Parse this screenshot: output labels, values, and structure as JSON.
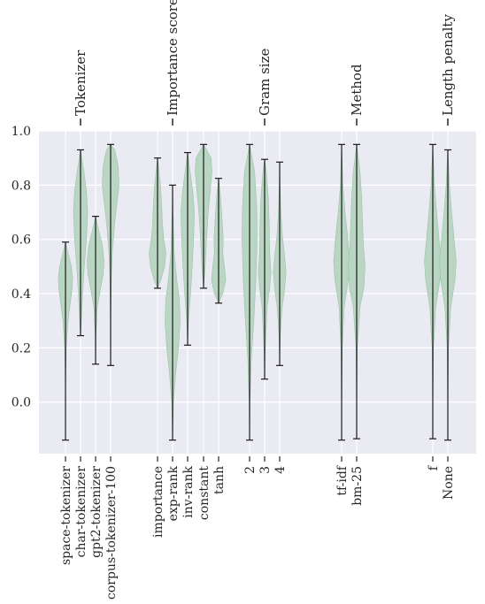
{
  "chart_data": {
    "type": "violin",
    "ylim": [
      -0.19,
      1.0
    ],
    "yticks": [
      0.0,
      0.2,
      0.4,
      0.6,
      0.8,
      1.0
    ],
    "ytick_labels": [
      "0.0",
      "0.2",
      "0.4",
      "0.6",
      "0.8",
      "1.0"
    ],
    "grid": true,
    "colors": {
      "background": "#eaeaf2",
      "grid": "#ffffff",
      "violin_fill": "#b9d6c3",
      "violin_stroke": "#9ec3ab",
      "whisker": "#1a1a1a",
      "text": "#262626"
    },
    "groups": [
      {
        "label": "Tokenizer",
        "items": [
          {
            "label": "space-tokenizer",
            "min": -0.14,
            "max": 0.59,
            "profile": [
              [
                -0.14,
                0.0
              ],
              [
                0.0,
                0.01
              ],
              [
                0.1,
                0.03
              ],
              [
                0.2,
                0.09
              ],
              [
                0.3,
                0.3
              ],
              [
                0.36,
                0.55
              ],
              [
                0.42,
                0.8
              ],
              [
                0.46,
                0.85
              ],
              [
                0.5,
                0.7
              ],
              [
                0.55,
                0.3
              ],
              [
                0.59,
                0.0
              ]
            ]
          },
          {
            "label": "char-tokenizer",
            "min": 0.245,
            "max": 0.93,
            "profile": [
              [
                0.245,
                0.0
              ],
              [
                0.3,
                0.1
              ],
              [
                0.4,
                0.25
              ],
              [
                0.5,
                0.45
              ],
              [
                0.6,
                0.7
              ],
              [
                0.7,
                0.85
              ],
              [
                0.78,
                0.7
              ],
              [
                0.85,
                0.4
              ],
              [
                0.93,
                0.0
              ]
            ]
          },
          {
            "label": "gpt2-tokenizer",
            "min": 0.14,
            "max": 0.685,
            "profile": [
              [
                0.14,
                0.0
              ],
              [
                0.25,
                0.05
              ],
              [
                0.35,
                0.2
              ],
              [
                0.42,
                0.6
              ],
              [
                0.47,
                0.9
              ],
              [
                0.52,
                1.0
              ],
              [
                0.58,
                0.8
              ],
              [
                0.63,
                0.4
              ],
              [
                0.685,
                0.0
              ]
            ]
          },
          {
            "label": "corpus-tokenizer-100",
            "min": 0.135,
            "max": 0.95,
            "profile": [
              [
                0.135,
                0.0
              ],
              [
                0.3,
                0.02
              ],
              [
                0.45,
                0.08
              ],
              [
                0.55,
                0.2
              ],
              [
                0.65,
                0.45
              ],
              [
                0.72,
                0.7
              ],
              [
                0.8,
                1.0
              ],
              [
                0.87,
                0.9
              ],
              [
                0.93,
                0.5
              ],
              [
                0.95,
                0.0
              ]
            ]
          }
        ]
      },
      {
        "label": "Importance score",
        "items": [
          {
            "label": "importance",
            "min": 0.42,
            "max": 0.9,
            "profile": [
              [
                0.42,
                0.0
              ],
              [
                0.45,
                0.4
              ],
              [
                0.5,
                0.85
              ],
              [
                0.55,
                1.0
              ],
              [
                0.6,
                0.75
              ],
              [
                0.65,
                0.6
              ],
              [
                0.72,
                0.5
              ],
              [
                0.8,
                0.35
              ],
              [
                0.9,
                0.0
              ]
            ]
          },
          {
            "label": "exp-rank",
            "min": -0.14,
            "max": 0.8,
            "profile": [
              [
                -0.14,
                0.0
              ],
              [
                0.0,
                0.1
              ],
              [
                0.1,
                0.35
              ],
              [
                0.2,
                0.7
              ],
              [
                0.3,
                0.9
              ],
              [
                0.38,
                0.8
              ],
              [
                0.45,
                0.5
              ],
              [
                0.55,
                0.2
              ],
              [
                0.7,
                0.05
              ],
              [
                0.8,
                0.0
              ]
            ]
          },
          {
            "label": "inv-rank",
            "min": 0.21,
            "max": 0.92,
            "profile": [
              [
                0.21,
                0.0
              ],
              [
                0.3,
                0.1
              ],
              [
                0.4,
                0.35
              ],
              [
                0.5,
                0.55
              ],
              [
                0.6,
                0.7
              ],
              [
                0.7,
                0.8
              ],
              [
                0.78,
                0.6
              ],
              [
                0.85,
                0.3
              ],
              [
                0.92,
                0.0
              ]
            ]
          },
          {
            "label": "constant",
            "min": 0.42,
            "max": 0.95,
            "profile": [
              [
                0.42,
                0.0
              ],
              [
                0.5,
                0.2
              ],
              [
                0.6,
                0.35
              ],
              [
                0.7,
                0.55
              ],
              [
                0.78,
                0.8
              ],
              [
                0.85,
                1.0
              ],
              [
                0.9,
                0.9
              ],
              [
                0.95,
                0.0
              ]
            ]
          },
          {
            "label": "tanh",
            "min": 0.365,
            "max": 0.825,
            "profile": [
              [
                0.365,
                0.0
              ],
              [
                0.4,
                0.5
              ],
              [
                0.45,
                0.85
              ],
              [
                0.5,
                0.7
              ],
              [
                0.55,
                0.5
              ],
              [
                0.6,
                0.55
              ],
              [
                0.68,
                0.4
              ],
              [
                0.75,
                0.25
              ],
              [
                0.825,
                0.0
              ]
            ]
          }
        ]
      },
      {
        "label": "Gram size",
        "items": [
          {
            "label": "2",
            "min": -0.14,
            "max": 0.95,
            "profile": [
              [
                -0.14,
                0.0
              ],
              [
                0.0,
                0.05
              ],
              [
                0.15,
                0.2
              ],
              [
                0.3,
                0.5
              ],
              [
                0.45,
                0.75
              ],
              [
                0.6,
                0.9
              ],
              [
                0.72,
                0.85
              ],
              [
                0.85,
                0.6
              ],
              [
                0.95,
                0.0
              ]
            ]
          },
          {
            "label": "3",
            "min": 0.085,
            "max": 0.895,
            "profile": [
              [
                0.085,
                0.0
              ],
              [
                0.2,
                0.08
              ],
              [
                0.35,
                0.3
              ],
              [
                0.42,
                0.6
              ],
              [
                0.48,
                0.75
              ],
              [
                0.55,
                0.6
              ],
              [
                0.65,
                0.55
              ],
              [
                0.75,
                0.45
              ],
              [
                0.85,
                0.2
              ],
              [
                0.895,
                0.0
              ]
            ]
          },
          {
            "label": "4",
            "min": 0.135,
            "max": 0.885,
            "profile": [
              [
                0.135,
                0.0
              ],
              [
                0.25,
                0.08
              ],
              [
                0.35,
                0.3
              ],
              [
                0.42,
                0.6
              ],
              [
                0.48,
                0.75
              ],
              [
                0.55,
                0.55
              ],
              [
                0.62,
                0.3
              ],
              [
                0.72,
                0.12
              ],
              [
                0.8,
                0.05
              ],
              [
                0.885,
                0.0
              ]
            ]
          }
        ]
      },
      {
        "label": "Method",
        "items": [
          {
            "label": "tf-idf",
            "min": -0.14,
            "max": 0.95,
            "profile": [
              [
                -0.14,
                0.0
              ],
              [
                0.0,
                0.02
              ],
              [
                0.2,
                0.08
              ],
              [
                0.35,
                0.3
              ],
              [
                0.45,
                0.8
              ],
              [
                0.52,
                0.95
              ],
              [
                0.6,
                0.75
              ],
              [
                0.7,
                0.4
              ],
              [
                0.8,
                0.15
              ],
              [
                0.95,
                0.0
              ]
            ]
          },
          {
            "label": "bm-25",
            "min": -0.135,
            "max": 0.95,
            "profile": [
              [
                -0.135,
                0.0
              ],
              [
                0.0,
                0.02
              ],
              [
                0.2,
                0.08
              ],
              [
                0.35,
                0.4
              ],
              [
                0.42,
                0.85
              ],
              [
                0.5,
                1.0
              ],
              [
                0.58,
                0.8
              ],
              [
                0.66,
                0.7
              ],
              [
                0.75,
                0.6
              ],
              [
                0.85,
                0.4
              ],
              [
                0.95,
                0.0
              ]
            ]
          }
        ]
      },
      {
        "label": "Length penalty",
        "items": [
          {
            "label": "f",
            "min": -0.135,
            "max": 0.95,
            "profile": [
              [
                -0.135,
                0.0
              ],
              [
                0.0,
                0.02
              ],
              [
                0.2,
                0.08
              ],
              [
                0.35,
                0.35
              ],
              [
                0.45,
                0.85
              ],
              [
                0.52,
                1.0
              ],
              [
                0.6,
                0.75
              ],
              [
                0.7,
                0.45
              ],
              [
                0.8,
                0.2
              ],
              [
                0.95,
                0.0
              ]
            ]
          },
          {
            "label": "None",
            "min": -0.14,
            "max": 0.93,
            "profile": [
              [
                -0.14,
                0.0
              ],
              [
                0.0,
                0.02
              ],
              [
                0.2,
                0.08
              ],
              [
                0.35,
                0.35
              ],
              [
                0.45,
                0.85
              ],
              [
                0.52,
                1.0
              ],
              [
                0.6,
                0.75
              ],
              [
                0.7,
                0.45
              ],
              [
                0.8,
                0.2
              ],
              [
                0.93,
                0.0
              ]
            ]
          }
        ]
      }
    ]
  }
}
